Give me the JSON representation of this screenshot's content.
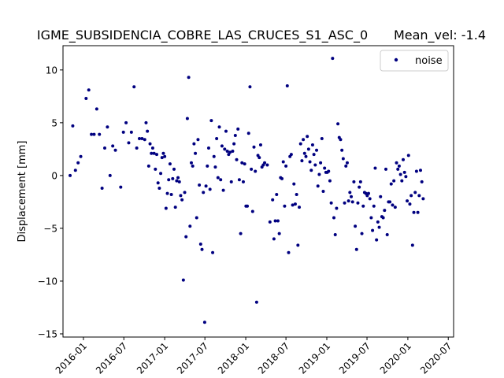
{
  "chart_data": {
    "type": "scatter",
    "title": "IGME_SUBSIDENCIA_COBRE_LAS_CRUCES_S1_ASC_0",
    "title_right": "Mean_vel: -1.4",
    "xlabel": "",
    "ylabel": "Displacement [mm]",
    "xlim": [
      "2015-10-01",
      "2020-07-25"
    ],
    "ylim": [
      -15.3,
      12.3
    ],
    "x_ticks": [
      "2016-01",
      "2016-07",
      "2017-01",
      "2017-07",
      "2018-01",
      "2018-07",
      "2019-01",
      "2019-07",
      "2020-01",
      "2020-07"
    ],
    "y_ticks": [
      -15,
      -10,
      -5,
      0,
      5,
      10
    ],
    "grid": false,
    "legend_position": "top-right",
    "color": "#000080",
    "series": [
      {
        "name": "noise",
        "points": [
          {
            "x": "2015-11-02",
            "y": 0.0
          },
          {
            "x": "2015-11-14",
            "y": 4.7
          },
          {
            "x": "2015-11-26",
            "y": 0.5
          },
          {
            "x": "2015-12-08",
            "y": 1.2
          },
          {
            "x": "2015-12-20",
            "y": 1.8
          },
          {
            "x": "2016-01-13",
            "y": 7.3
          },
          {
            "x": "2016-01-25",
            "y": 8.1
          },
          {
            "x": "2016-02-06",
            "y": 3.9
          },
          {
            "x": "2016-02-18",
            "y": 3.9
          },
          {
            "x": "2016-03-01",
            "y": 6.3
          },
          {
            "x": "2016-03-13",
            "y": 3.9
          },
          {
            "x": "2016-03-25",
            "y": -1.2
          },
          {
            "x": "2016-04-06",
            "y": 2.6
          },
          {
            "x": "2016-04-18",
            "y": 4.6
          },
          {
            "x": "2016-04-30",
            "y": 0.0
          },
          {
            "x": "2016-05-12",
            "y": 2.8
          },
          {
            "x": "2016-05-24",
            "y": 2.4
          },
          {
            "x": "2016-06-17",
            "y": -1.1
          },
          {
            "x": "2016-06-29",
            "y": 4.1
          },
          {
            "x": "2016-07-11",
            "y": 5.0
          },
          {
            "x": "2016-07-23",
            "y": 3.1
          },
          {
            "x": "2016-08-04",
            "y": 4.1
          },
          {
            "x": "2016-08-16",
            "y": 8.4
          },
          {
            "x": "2016-08-28",
            "y": 2.6
          },
          {
            "x": "2016-09-09",
            "y": 3.5
          },
          {
            "x": "2016-09-21",
            "y": 3.5
          },
          {
            "x": "2016-10-03",
            "y": 3.4
          },
          {
            "x": "2016-10-09",
            "y": 5.0
          },
          {
            "x": "2016-10-15",
            "y": 4.2
          },
          {
            "x": "2016-10-21",
            "y": 0.9
          },
          {
            "x": "2016-10-27",
            "y": 3.0
          },
          {
            "x": "2016-11-02",
            "y": 2.1
          },
          {
            "x": "2016-11-08",
            "y": 2.6
          },
          {
            "x": "2016-11-14",
            "y": 2.1
          },
          {
            "x": "2016-11-20",
            "y": 0.6
          },
          {
            "x": "2016-11-26",
            "y": 2.0
          },
          {
            "x": "2016-12-02",
            "y": -0.7
          },
          {
            "x": "2016-12-08",
            "y": -1.2
          },
          {
            "x": "2016-12-14",
            "y": 0.2
          },
          {
            "x": "2016-12-20",
            "y": 1.7
          },
          {
            "x": "2016-12-26",
            "y": 2.1
          },
          {
            "x": "2017-01-01",
            "y": 1.8
          },
          {
            "x": "2017-01-07",
            "y": -3.1
          },
          {
            "x": "2017-01-13",
            "y": -1.7
          },
          {
            "x": "2017-01-19",
            "y": -0.4
          },
          {
            "x": "2017-01-25",
            "y": 1.1
          },
          {
            "x": "2017-01-31",
            "y": -1.8
          },
          {
            "x": "2017-02-06",
            "y": -0.3
          },
          {
            "x": "2017-02-12",
            "y": 0.6
          },
          {
            "x": "2017-02-18",
            "y": -3.0
          },
          {
            "x": "2017-02-24",
            "y": -0.5
          },
          {
            "x": "2017-03-02",
            "y": -0.2
          },
          {
            "x": "2017-03-08",
            "y": -0.6
          },
          {
            "x": "2017-03-14",
            "y": -1.9
          },
          {
            "x": "2017-03-20",
            "y": -2.3
          },
          {
            "x": "2017-03-26",
            "y": -9.9
          },
          {
            "x": "2017-04-01",
            "y": -1.6
          },
          {
            "x": "2017-04-07",
            "y": -5.8
          },
          {
            "x": "2017-04-13",
            "y": 5.4
          },
          {
            "x": "2017-04-19",
            "y": 9.3
          },
          {
            "x": "2017-04-25",
            "y": -4.8
          },
          {
            "x": "2017-05-01",
            "y": 1.2
          },
          {
            "x": "2017-05-07",
            "y": 0.9
          },
          {
            "x": "2017-05-13",
            "y": 3.0
          },
          {
            "x": "2017-05-19",
            "y": 2.1
          },
          {
            "x": "2017-05-25",
            "y": -4.0
          },
          {
            "x": "2017-05-31",
            "y": 3.4
          },
          {
            "x": "2017-06-06",
            "y": -0.9
          },
          {
            "x": "2017-06-12",
            "y": -6.5
          },
          {
            "x": "2017-06-18",
            "y": -7.0
          },
          {
            "x": "2017-06-24",
            "y": -1.6
          },
          {
            "x": "2017-06-30",
            "y": -13.9
          },
          {
            "x": "2017-07-06",
            "y": -1.0
          },
          {
            "x": "2017-07-12",
            "y": 0.9
          },
          {
            "x": "2017-07-18",
            "y": 2.6
          },
          {
            "x": "2017-07-24",
            "y": -1.3
          },
          {
            "x": "2017-07-30",
            "y": 5.2
          },
          {
            "x": "2017-08-05",
            "y": -7.3
          },
          {
            "x": "2017-08-11",
            "y": 1.8
          },
          {
            "x": "2017-08-17",
            "y": 0.8
          },
          {
            "x": "2017-08-23",
            "y": 3.5
          },
          {
            "x": "2017-08-29",
            "y": -0.2
          },
          {
            "x": "2017-09-04",
            "y": 4.6
          },
          {
            "x": "2017-09-10",
            "y": -0.4
          },
          {
            "x": "2017-09-16",
            "y": 2.8
          },
          {
            "x": "2017-09-22",
            "y": -1.4
          },
          {
            "x": "2017-09-28",
            "y": 2.5
          },
          {
            "x": "2017-10-04",
            "y": 4.2
          },
          {
            "x": "2017-10-10",
            "y": 2.3
          },
          {
            "x": "2017-10-16",
            "y": 2.0
          },
          {
            "x": "2017-10-22",
            "y": 2.2
          },
          {
            "x": "2017-10-28",
            "y": -0.6
          },
          {
            "x": "2017-11-03",
            "y": 2.3
          },
          {
            "x": "2017-11-09",
            "y": 3.0
          },
          {
            "x": "2017-11-15",
            "y": 3.8
          },
          {
            "x": "2017-11-21",
            "y": 1.5
          },
          {
            "x": "2017-11-27",
            "y": 4.4
          },
          {
            "x": "2017-12-03",
            "y": -0.4
          },
          {
            "x": "2017-12-09",
            "y": -5.5
          },
          {
            "x": "2017-12-15",
            "y": 1.2
          },
          {
            "x": "2017-12-21",
            "y": -0.6
          },
          {
            "x": "2017-12-27",
            "y": 1.1
          },
          {
            "x": "2018-01-02",
            "y": -2.9
          },
          {
            "x": "2018-01-08",
            "y": -2.9
          },
          {
            "x": "2018-01-14",
            "y": 4.0
          },
          {
            "x": "2018-01-20",
            "y": 8.4
          },
          {
            "x": "2018-01-26",
            "y": 0.6
          },
          {
            "x": "2018-02-01",
            "y": -3.4
          },
          {
            "x": "2018-02-07",
            "y": 2.7
          },
          {
            "x": "2018-02-13",
            "y": 0.4
          },
          {
            "x": "2018-02-19",
            "y": -12.0
          },
          {
            "x": "2018-02-25",
            "y": 1.9
          },
          {
            "x": "2018-03-03",
            "y": 1.7
          },
          {
            "x": "2018-03-09",
            "y": 2.9
          },
          {
            "x": "2018-03-15",
            "y": 0.8
          },
          {
            "x": "2018-03-21",
            "y": 1.0
          },
          {
            "x": "2018-03-27",
            "y": 1.2
          },
          {
            "x": "2018-04-08",
            "y": 1.0
          },
          {
            "x": "2018-04-20",
            "y": -4.4
          },
          {
            "x": "2018-05-02",
            "y": -2.3
          },
          {
            "x": "2018-05-08",
            "y": -6.0
          },
          {
            "x": "2018-05-14",
            "y": -4.3
          },
          {
            "x": "2018-05-20",
            "y": -1.8
          },
          {
            "x": "2018-05-26",
            "y": -4.3
          },
          {
            "x": "2018-06-01",
            "y": -5.5
          },
          {
            "x": "2018-06-07",
            "y": -0.2
          },
          {
            "x": "2018-06-13",
            "y": -0.3
          },
          {
            "x": "2018-06-19",
            "y": 1.3
          },
          {
            "x": "2018-06-25",
            "y": -2.9
          },
          {
            "x": "2018-07-01",
            "y": 0.9
          },
          {
            "x": "2018-07-07",
            "y": 8.5
          },
          {
            "x": "2018-07-13",
            "y": -7.3
          },
          {
            "x": "2018-07-19",
            "y": 1.8
          },
          {
            "x": "2018-07-25",
            "y": 2.0
          },
          {
            "x": "2018-07-31",
            "y": -2.8
          },
          {
            "x": "2018-08-06",
            "y": -0.8
          },
          {
            "x": "2018-08-12",
            "y": -2.7
          },
          {
            "x": "2018-08-18",
            "y": -1.8
          },
          {
            "x": "2018-08-24",
            "y": -6.6
          },
          {
            "x": "2018-08-30",
            "y": -3.0
          },
          {
            "x": "2018-09-05",
            "y": 3.0
          },
          {
            "x": "2018-09-11",
            "y": 1.4
          },
          {
            "x": "2018-09-17",
            "y": 3.4
          },
          {
            "x": "2018-09-23",
            "y": 2.1
          },
          {
            "x": "2018-09-29",
            "y": 1.8
          },
          {
            "x": "2018-10-05",
            "y": 3.7
          },
          {
            "x": "2018-10-11",
            "y": 2.5
          },
          {
            "x": "2018-10-17",
            "y": 1.3
          },
          {
            "x": "2018-10-23",
            "y": 0.5
          },
          {
            "x": "2018-10-29",
            "y": 2.9
          },
          {
            "x": "2018-11-04",
            "y": 2.0
          },
          {
            "x": "2018-11-10",
            "y": 1.0
          },
          {
            "x": "2018-11-16",
            "y": 2.4
          },
          {
            "x": "2018-11-22",
            "y": -1.0
          },
          {
            "x": "2018-11-28",
            "y": 0.1
          },
          {
            "x": "2018-12-04",
            "y": 1.2
          },
          {
            "x": "2018-12-10",
            "y": 3.5
          },
          {
            "x": "2018-12-16",
            "y": -1.5
          },
          {
            "x": "2018-12-22",
            "y": 0.7
          },
          {
            "x": "2018-12-28",
            "y": 0.3
          },
          {
            "x": "2019-01-03",
            "y": 0.3
          },
          {
            "x": "2019-01-09",
            "y": 0.4
          },
          {
            "x": "2019-01-15",
            "y": -0.5
          },
          {
            "x": "2019-01-21",
            "y": -2.6
          },
          {
            "x": "2019-01-27",
            "y": 11.1
          },
          {
            "x": "2019-02-02",
            "y": -4.0
          },
          {
            "x": "2019-02-08",
            "y": -5.6
          },
          {
            "x": "2019-02-14",
            "y": -3.1
          },
          {
            "x": "2019-02-20",
            "y": 4.9
          },
          {
            "x": "2019-02-26",
            "y": 3.6
          },
          {
            "x": "2019-03-04",
            "y": 3.4
          },
          {
            "x": "2019-03-10",
            "y": 2.4
          },
          {
            "x": "2019-03-16",
            "y": 1.6
          },
          {
            "x": "2019-03-22",
            "y": -2.6
          },
          {
            "x": "2019-03-28",
            "y": 0.9
          },
          {
            "x": "2019-04-03",
            "y": 1.2
          },
          {
            "x": "2019-04-09",
            "y": -2.4
          },
          {
            "x": "2019-04-15",
            "y": -1.6
          },
          {
            "x": "2019-04-21",
            "y": -2.0
          },
          {
            "x": "2019-04-27",
            "y": -2.5
          },
          {
            "x": "2019-05-03",
            "y": -0.6
          },
          {
            "x": "2019-05-09",
            "y": -4.8
          },
          {
            "x": "2019-05-15",
            "y": -7.0
          },
          {
            "x": "2019-05-21",
            "y": -2.6
          },
          {
            "x": "2019-05-27",
            "y": -1.1
          },
          {
            "x": "2019-06-02",
            "y": -0.6
          },
          {
            "x": "2019-06-08",
            "y": -5.5
          },
          {
            "x": "2019-06-14",
            "y": -2.9
          },
          {
            "x": "2019-06-20",
            "y": -1.6
          },
          {
            "x": "2019-06-26",
            "y": -1.7
          },
          {
            "x": "2019-07-02",
            "y": -1.9
          },
          {
            "x": "2019-07-08",
            "y": -1.7
          },
          {
            "x": "2019-07-14",
            "y": -2.2
          },
          {
            "x": "2019-07-20",
            "y": -4.0
          },
          {
            "x": "2019-07-26",
            "y": -5.2
          },
          {
            "x": "2019-08-01",
            "y": -2.9
          },
          {
            "x": "2019-08-07",
            "y": 0.7
          },
          {
            "x": "2019-08-13",
            "y": -6.1
          },
          {
            "x": "2019-08-19",
            "y": -4.4
          },
          {
            "x": "2019-08-25",
            "y": -4.9
          },
          {
            "x": "2019-08-31",
            "y": -2.0
          },
          {
            "x": "2019-09-06",
            "y": -3.9
          },
          {
            "x": "2019-09-12",
            "y": -4.0
          },
          {
            "x": "2019-09-18",
            "y": -3.3
          },
          {
            "x": "2019-09-24",
            "y": 0.6
          },
          {
            "x": "2019-09-30",
            "y": -5.6
          },
          {
            "x": "2019-10-06",
            "y": -2.5
          },
          {
            "x": "2019-10-12",
            "y": -2.5
          },
          {
            "x": "2019-10-18",
            "y": -0.8
          },
          {
            "x": "2019-10-24",
            "y": -2.8
          },
          {
            "x": "2019-10-30",
            "y": -0.5
          },
          {
            "x": "2019-11-05",
            "y": -3.0
          },
          {
            "x": "2019-11-11",
            "y": 1.2
          },
          {
            "x": "2019-11-17",
            "y": 0.6
          },
          {
            "x": "2019-11-23",
            "y": 0.9
          },
          {
            "x": "2019-11-29",
            "y": 0.1
          },
          {
            "x": "2019-12-05",
            "y": -0.5
          },
          {
            "x": "2019-12-11",
            "y": 1.5
          },
          {
            "x": "2019-12-17",
            "y": 0.3
          },
          {
            "x": "2019-12-23",
            "y": -0.1
          },
          {
            "x": "2019-12-29",
            "y": -2.4
          },
          {
            "x": "2020-01-04",
            "y": 1.9
          },
          {
            "x": "2020-01-10",
            "y": -2.7
          },
          {
            "x": "2020-01-16",
            "y": -1.9
          },
          {
            "x": "2020-01-22",
            "y": -6.6
          },
          {
            "x": "2020-01-28",
            "y": -3.5
          },
          {
            "x": "2020-02-03",
            "y": -1.6
          },
          {
            "x": "2020-02-09",
            "y": 0.4
          },
          {
            "x": "2020-02-15",
            "y": -3.5
          },
          {
            "x": "2020-02-21",
            "y": -1.9
          },
          {
            "x": "2020-02-27",
            "y": 0.5
          },
          {
            "x": "2020-03-04",
            "y": -0.6
          },
          {
            "x": "2020-03-10",
            "y": -2.2
          }
        ]
      }
    ]
  }
}
